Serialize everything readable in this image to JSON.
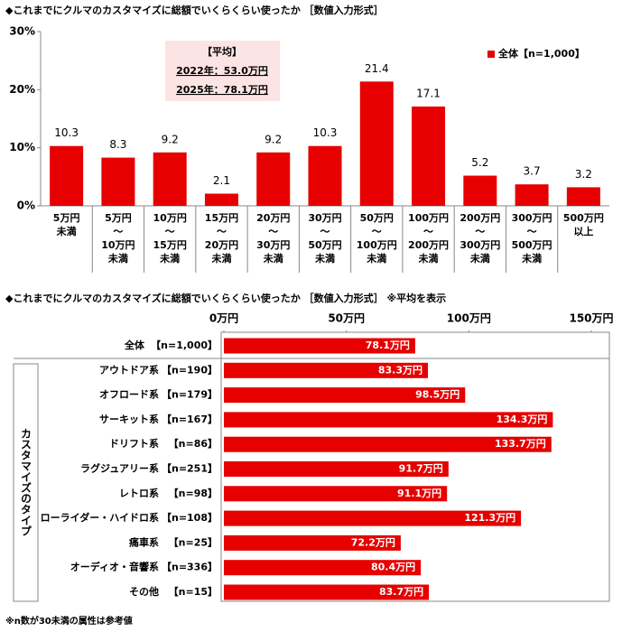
{
  "chart_data": [
    {
      "type": "bar",
      "title": "◆これまでにクルマのカスタマイズに総額でいくらくらい使ったか ［数値入力形式］",
      "categories": [
        "5万円\n未満",
        "5万円\n～\n10万円\n未満",
        "10万円\n～\n15万円\n未満",
        "15万円\n～\n20万円\n未満",
        "20万円\n～\n30万円\n未満",
        "30万円\n～\n50万円\n未満",
        "50万円\n～\n100万円\n未満",
        "100万円\n～\n200万円\n未満",
        "200万円\n～\n300万円\n未満",
        "300万円\n～\n500万円\n未満",
        "500万円\n以上"
      ],
      "series": [
        {
          "name": "全体【n=1,000】",
          "color": "#e60000",
          "values": [
            10.3,
            8.3,
            9.2,
            2.1,
            9.2,
            10.3,
            21.4,
            17.1,
            5.2,
            3.7,
            3.2
          ]
        }
      ],
      "ylim": [
        0,
        30
      ],
      "yticks": [
        {
          "value": 0,
          "label": "0%"
        },
        {
          "value": 10,
          "label": "10%"
        },
        {
          "value": 20,
          "label": "20%"
        },
        {
          "value": 30,
          "label": "30%"
        }
      ],
      "grid": false,
      "legend": "top-right",
      "annotations": [
        "【平均】",
        "2022年：53.0万円",
        "2025年：78.1万円"
      ]
    },
    {
      "type": "hbar",
      "title": "◆これまでにクルマのカスタマイズに総額でいくらくらい使ったか ［数値入力形式］ ※平均を表示",
      "categories": [
        "全体",
        "アウトドア系",
        "オフロード系",
        "サーキット系",
        "ドリフト系",
        "ラグジュアリー系",
        "レトロ系",
        "ローライダー・ハイドロ系",
        "痛車系",
        "オーディオ・音響系",
        "その他"
      ],
      "n_labels": [
        "【n=1,000】",
        "【n=190】",
        "【n=179】",
        "【n=167】",
        "【n=86】",
        "【n=251】",
        "【n=98】",
        "【n=108】",
        "【n=25】",
        "【n=336】",
        "【n=15】"
      ],
      "group_label": "カスタマイズのタイプ",
      "values": [
        78.1,
        83.3,
        98.5,
        134.3,
        133.7,
        91.7,
        91.1,
        121.3,
        72.2,
        80.4,
        83.7
      ],
      "value_labels": [
        "78.1万円",
        "83.3万円",
        "98.5万円",
        "134.3万円",
        "133.7万円",
        "91.7万円",
        "91.1万円",
        "121.3万円",
        "72.2万円",
        "80.4万円",
        "83.7万円"
      ],
      "color": "#e60000",
      "xlim": [
        0,
        150
      ],
      "xticks": [
        {
          "value": 0,
          "label": "0万円"
        },
        {
          "value": 50,
          "label": "50万円"
        },
        {
          "value": 100,
          "label": "100万円"
        },
        {
          "value": 150,
          "label": "150万円"
        }
      ],
      "grid": false,
      "footnote": "※n数が30未満の属性は参考値"
    }
  ]
}
